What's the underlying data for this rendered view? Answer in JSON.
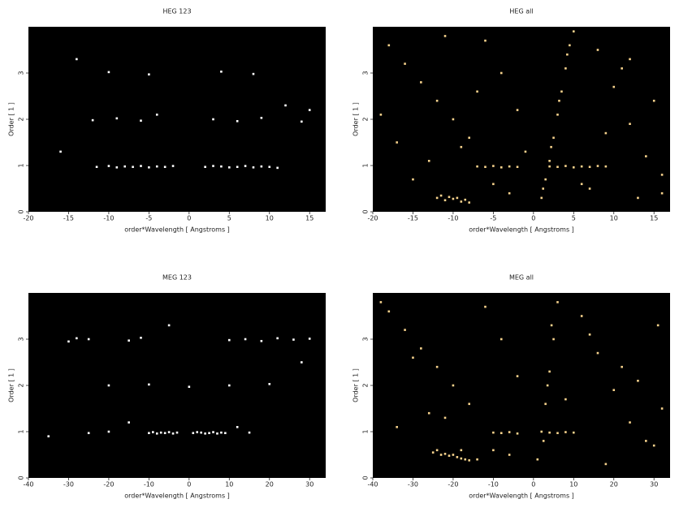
{
  "chart_data": [
    {
      "type": "scatter",
      "title": "HEG 123",
      "x_label": "order*Wavelength [ Angstroms ]",
      "y_label": "Order [ 1 ]",
      "xlim": [
        -20,
        17
      ],
      "ylim": [
        0,
        4
      ],
      "xticks": [
        -20,
        -15,
        -10,
        -5,
        0,
        5,
        10,
        15
      ],
      "yticks": [
        0,
        1,
        2,
        3
      ],
      "color": "#ffffff",
      "x": [
        -11.5,
        -10,
        -9,
        -8,
        -7,
        -6,
        -5,
        -4,
        -3,
        -2,
        2,
        3,
        4,
        5,
        6,
        7,
        8,
        9,
        10,
        11,
        -12,
        -9,
        -6,
        -4,
        3,
        6,
        9,
        14,
        -10,
        -5,
        4,
        8,
        -16,
        15,
        -14,
        12
      ],
      "values": [
        0.97,
        0.99,
        0.96,
        0.98,
        0.97,
        0.99,
        0.96,
        0.98,
        0.97,
        0.99,
        0.97,
        0.99,
        0.98,
        0.96,
        0.97,
        0.99,
        0.96,
        0.98,
        0.97,
        0.95,
        1.98,
        2.02,
        1.97,
        2.1,
        2.0,
        1.96,
        2.03,
        1.95,
        3.02,
        2.97,
        3.03,
        2.98,
        1.3,
        2.2,
        3.3,
        2.3
      ]
    },
    {
      "type": "scatter",
      "title": "HEG all",
      "x_label": "order*Wavelength [ Angstroms ]",
      "y_label": "Order [ 1 ]",
      "xlim": [
        -20,
        17
      ],
      "ylim": [
        0,
        4
      ],
      "xticks": [
        -20,
        -15,
        -10,
        -5,
        0,
        5,
        10,
        15
      ],
      "yticks": [
        0,
        1,
        2,
        3
      ],
      "color": "#f6d28c",
      "x": [
        -12,
        -11,
        -10,
        -9,
        -8,
        -11.5,
        -10.5,
        -9.5,
        -8.5,
        -7,
        -6,
        -5,
        -4,
        -3,
        -2,
        2,
        3,
        4,
        5,
        6,
        7,
        8,
        9,
        1,
        1.5,
        2,
        2.5,
        3,
        3.5,
        4,
        4.5,
        5,
        1.2,
        2.2,
        3.2,
        4.2,
        -18,
        -16,
        -14,
        -12,
        -10,
        -8,
        -6,
        -4,
        -2,
        8,
        10,
        12,
        14,
        16,
        -17,
        -13,
        -9,
        -5,
        -3,
        7,
        11,
        15,
        -15,
        -7,
        6,
        13,
        -19,
        -11,
        -1,
        9,
        12,
        16
      ],
      "values": [
        0.3,
        0.25,
        0.28,
        0.22,
        0.2,
        0.35,
        0.32,
        0.3,
        0.26,
        0.98,
        0.97,
        0.99,
        0.96,
        0.98,
        0.97,
        0.98,
        0.97,
        0.99,
        0.96,
        0.98,
        0.97,
        0.99,
        0.98,
        0.3,
        0.7,
        1.1,
        1.6,
        2.1,
        2.6,
        3.1,
        3.6,
        3.9,
        0.5,
        1.4,
        2.4,
        3.4,
        3.6,
        3.2,
        2.8,
        2.4,
        2.0,
        1.6,
        3.7,
        3.0,
        2.2,
        3.5,
        2.7,
        1.9,
        1.2,
        0.8,
        1.5,
        1.1,
        1.4,
        0.6,
        0.4,
        0.5,
        3.1,
        2.4,
        0.7,
        2.6,
        0.6,
        0.3,
        2.1,
        3.8,
        1.3,
        1.7,
        3.3,
        0.4
      ]
    },
    {
      "type": "scatter",
      "title": "MEG 123",
      "x_label": "order*Wavelength [ Angstroms ]",
      "y_label": "Order [ 1 ]",
      "xlim": [
        -40,
        34
      ],
      "ylim": [
        0,
        4
      ],
      "xticks": [
        -40,
        -30,
        -20,
        -10,
        0,
        10,
        20,
        30
      ],
      "yticks": [
        0,
        1,
        2,
        3
      ],
      "color": "#ffffff",
      "x": [
        -10,
        -9,
        -8,
        -7,
        -6,
        -5,
        -4,
        -3,
        1,
        2,
        3,
        4,
        5,
        6,
        7,
        8,
        9,
        -25,
        -20,
        -15,
        -35,
        12,
        15,
        -20,
        -10,
        0,
        10,
        20,
        -30,
        -28,
        -25,
        -15,
        -12,
        10,
        14,
        18,
        22,
        26,
        30,
        -5,
        28
      ],
      "values": [
        0.97,
        0.99,
        0.96,
        0.98,
        0.97,
        0.99,
        0.96,
        0.98,
        0.97,
        0.99,
        0.98,
        0.96,
        0.97,
        0.99,
        0.96,
        0.98,
        0.97,
        0.97,
        1.0,
        1.2,
        0.9,
        1.1,
        0.98,
        2.0,
        2.02,
        1.97,
        2.0,
        2.03,
        2.95,
        3.02,
        3.0,
        2.97,
        3.03,
        2.98,
        3.0,
        2.96,
        3.02,
        2.99,
        3.01,
        3.3,
        2.5
      ]
    },
    {
      "type": "scatter",
      "title": "MEG all",
      "x_label": "order*Wavelength [ Angstroms ]",
      "y_label": "Order [ 1 ]",
      "xlim": [
        -40,
        34
      ],
      "ylim": [
        0,
        4
      ],
      "xticks": [
        -40,
        -30,
        -20,
        -10,
        0,
        10,
        20,
        30
      ],
      "yticks": [
        0,
        1,
        2,
        3
      ],
      "color": "#f6d28c",
      "x": [
        -25,
        -23,
        -21,
        -19,
        -17,
        -24,
        -22,
        -20,
        -18,
        -16,
        -10,
        -8,
        -6,
        -4,
        4,
        6,
        8,
        10,
        1,
        2,
        3,
        4,
        5,
        6,
        2.5,
        3.5,
        4.5,
        -36,
        -32,
        -28,
        -24,
        -20,
        -16,
        -12,
        -8,
        -4,
        12,
        16,
        20,
        24,
        28,
        32,
        -34,
        -26,
        -18,
        -14,
        -6,
        14,
        22,
        30,
        -30,
        -10,
        18,
        26,
        -38,
        -22,
        8,
        31
      ],
      "values": [
        0.55,
        0.5,
        0.48,
        0.45,
        0.4,
        0.6,
        0.52,
        0.5,
        0.42,
        0.38,
        0.98,
        0.97,
        0.99,
        0.96,
        0.98,
        0.97,
        0.99,
        0.98,
        0.4,
        1.0,
        1.6,
        2.3,
        3.0,
        3.8,
        0.8,
        2.0,
        3.3,
        3.6,
        3.2,
        2.8,
        2.4,
        2.0,
        1.6,
        3.7,
        3.0,
        2.2,
        3.5,
        2.7,
        1.9,
        1.2,
        0.8,
        1.5,
        1.1,
        1.4,
        0.6,
        0.4,
        0.5,
        3.1,
        2.4,
        0.7,
        2.6,
        0.6,
        0.3,
        2.1,
        3.8,
        1.3,
        1.7,
        3.3
      ]
    }
  ]
}
